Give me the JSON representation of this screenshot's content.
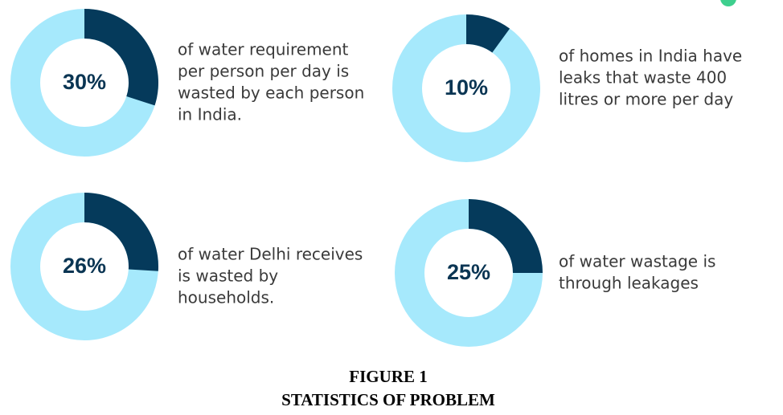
{
  "chart_data": [
    {
      "type": "donut",
      "values": [
        30
      ],
      "value_labels": [
        "30%"
      ],
      "color": "#053a5b",
      "track_color": "#a6e9fc",
      "annotation": [
        "of water requirement",
        "per person per day is",
        "wasted by each person",
        "in India."
      ]
    },
    {
      "type": "donut",
      "values": [
        10
      ],
      "value_labels": [
        "10%"
      ],
      "color": "#053a5b",
      "track_color": "#a6e9fc",
      "annotation": [
        "of homes in India have",
        "leaks that waste 400",
        "litres or more per day"
      ]
    },
    {
      "type": "donut",
      "values": [
        26
      ],
      "value_labels": [
        "26%"
      ],
      "color": "#053a5b",
      "track_color": "#a6e9fc",
      "annotation": [
        "of water Delhi receives",
        "is wasted by",
        "households."
      ]
    },
    {
      "type": "donut",
      "values": [
        25
      ],
      "value_labels": [
        "25%"
      ],
      "color": "#053a5b",
      "track_color": "#a6e9fc",
      "annotation": [
        "of water wastage is",
        "through leakages"
      ]
    }
  ],
  "caption": {
    "label": "FIGURE 1",
    "title": "STATISTICS OF PROBLEM"
  }
}
